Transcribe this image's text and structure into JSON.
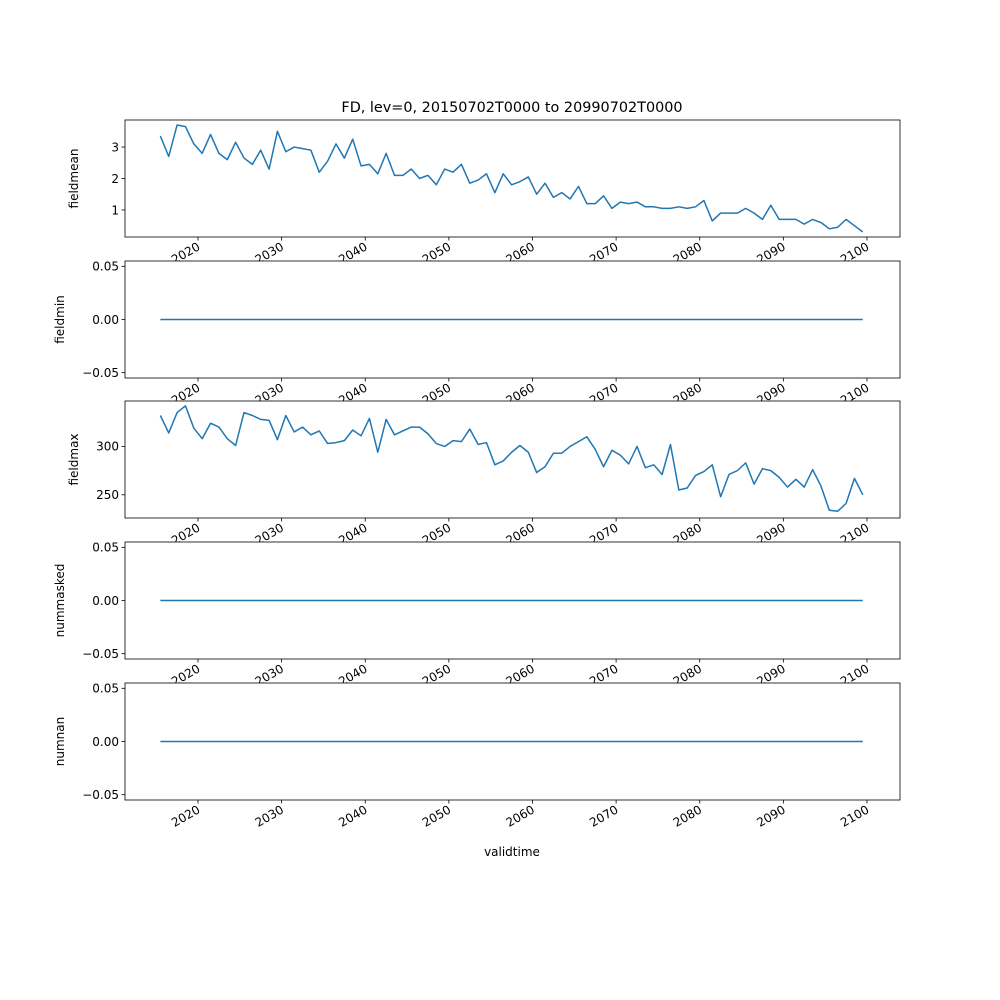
{
  "chart_data": {
    "type": "line",
    "title": "FD, lev=0, 20150702T0000 to 20990702T0000",
    "xlabel": "validtime",
    "line_color": "#1f77b4",
    "x_years": [
      2015,
      2016,
      2017,
      2018,
      2019,
      2020,
      2021,
      2022,
      2023,
      2024,
      2025,
      2026,
      2027,
      2028,
      2029,
      2030,
      2031,
      2032,
      2033,
      2034,
      2035,
      2036,
      2037,
      2038,
      2039,
      2040,
      2041,
      2042,
      2043,
      2044,
      2045,
      2046,
      2047,
      2048,
      2049,
      2050,
      2051,
      2052,
      2053,
      2054,
      2055,
      2056,
      2057,
      2058,
      2059,
      2060,
      2061,
      2062,
      2063,
      2064,
      2065,
      2066,
      2067,
      2068,
      2069,
      2070,
      2071,
      2072,
      2073,
      2074,
      2075,
      2076,
      2077,
      2078,
      2079,
      2080,
      2081,
      2082,
      2083,
      2084,
      2085,
      2086,
      2087,
      2088,
      2089,
      2090,
      2091,
      2092,
      2093,
      2094,
      2095,
      2096,
      2097,
      2098,
      2099
    ],
    "x_date_suffix": "0702T0000",
    "xlim": [
      2011.27,
      2103.95
    ],
    "xticks": [
      2020,
      2030,
      2040,
      2050,
      2060,
      2070,
      2080,
      2090,
      2100
    ],
    "xtick_labels": [
      "2020",
      "2030",
      "2040",
      "2050",
      "2060",
      "2070",
      "2080",
      "2090",
      "2100"
    ],
    "panels": [
      {
        "ylabel": "fieldmean",
        "ylim": [
          0.14,
          3.86
        ],
        "yticks": [
          1,
          2,
          3
        ],
        "ytick_labels": [
          "1",
          "2",
          "3"
        ],
        "values": [
          3.35,
          2.7,
          3.7,
          3.65,
          3.1,
          2.8,
          3.4,
          2.8,
          2.6,
          3.15,
          2.65,
          2.45,
          2.9,
          2.3,
          3.5,
          2.85,
          3.0,
          2.95,
          2.9,
          2.2,
          2.55,
          3.1,
          2.65,
          3.25,
          2.4,
          2.45,
          2.15,
          2.8,
          2.1,
          2.1,
          2.3,
          2.0,
          2.1,
          1.8,
          2.3,
          2.2,
          2.45,
          1.85,
          1.95,
          2.15,
          1.55,
          2.15,
          1.8,
          1.9,
          2.05,
          1.5,
          1.85,
          1.4,
          1.55,
          1.35,
          1.75,
          1.2,
          1.2,
          1.45,
          1.05,
          1.25,
          1.2,
          1.25,
          1.1,
          1.1,
          1.05,
          1.05,
          1.1,
          1.05,
          1.1,
          1.3,
          0.65,
          0.9,
          0.9,
          0.9,
          1.05,
          0.9,
          0.7,
          1.15,
          0.7,
          0.7,
          0.7,
          0.55,
          0.7,
          0.6,
          0.4,
          0.45,
          0.7,
          0.5,
          0.3
        ]
      },
      {
        "ylabel": "fieldmin",
        "ylim": [
          -0.055,
          0.055
        ],
        "yticks": [
          -0.05,
          0,
          0.05
        ],
        "ytick_labels": [
          "−0.05",
          "0.00",
          "0.05"
        ],
        "constant": 0
      },
      {
        "ylabel": "fieldmax",
        "ylim": [
          226,
          347
        ],
        "yticks": [
          250,
          300
        ],
        "ytick_labels": [
          "250",
          "300"
        ],
        "values": [
          332,
          314,
          335,
          342,
          319,
          308,
          324,
          320,
          308,
          301,
          335,
          332,
          328,
          327,
          307,
          332,
          315,
          320,
          312,
          316,
          303,
          304,
          306,
          317,
          311,
          329,
          294,
          328,
          312,
          316,
          320,
          320,
          313,
          303,
          300,
          306,
          305,
          318,
          302,
          304,
          281,
          285,
          294,
          301,
          294,
          273,
          279,
          293,
          293,
          300,
          305,
          310,
          297,
          279,
          296,
          291,
          282,
          300,
          278,
          281,
          271,
          302,
          255,
          257,
          270,
          274,
          281,
          248,
          271,
          275,
          283,
          261,
          277,
          275,
          268,
          258,
          266,
          258,
          276,
          259,
          234,
          233,
          241,
          267,
          250
        ]
      },
      {
        "ylabel": "nummasked",
        "ylim": [
          -0.055,
          0.055
        ],
        "yticks": [
          -0.05,
          0,
          0.05
        ],
        "ytick_labels": [
          "−0.05",
          "0.00",
          "0.05"
        ],
        "constant": 0
      },
      {
        "ylabel": "numnan",
        "ylim": [
          -0.055,
          0.055
        ],
        "yticks": [
          -0.05,
          0,
          0.05
        ],
        "ytick_labels": [
          "−0.05",
          "0.00",
          "0.05"
        ],
        "constant": 0
      }
    ]
  }
}
